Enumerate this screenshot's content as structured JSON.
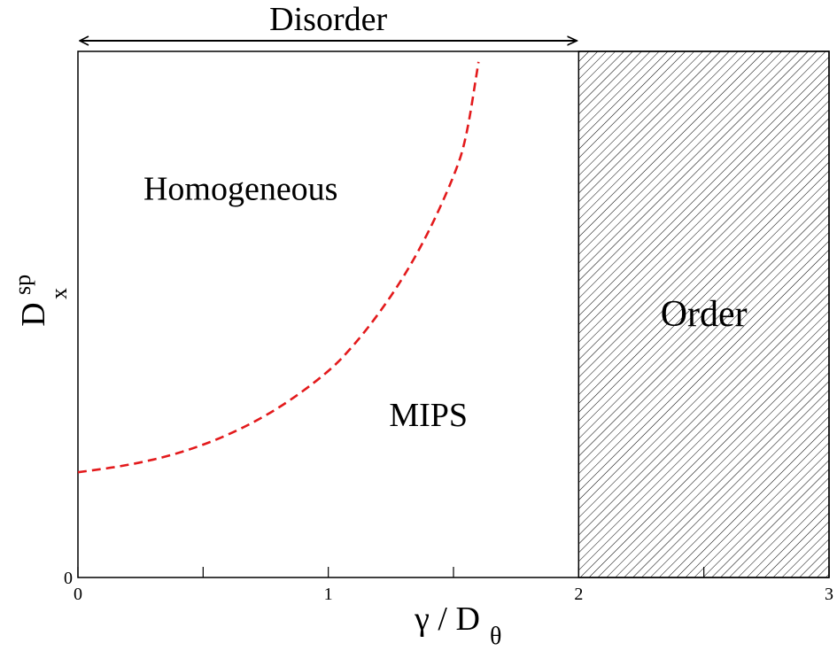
{
  "chart_data": {
    "type": "line",
    "title": "",
    "xlabel": "γ / D",
    "xlabel_sub": "θ",
    "ylabel": "D",
    "ylabel_sub": "x",
    "ylabel_sup": "sp",
    "xlim": [
      0,
      3
    ],
    "ylim": [
      0,
      1
    ],
    "x_ticks": [
      0,
      0.5,
      1,
      1.5,
      2,
      2.5,
      3
    ],
    "x_tick_labels": [
      {
        "value": 0,
        "label": "0"
      },
      {
        "value": 1,
        "label": "1"
      },
      {
        "value": 2,
        "label": "2"
      },
      {
        "value": 3,
        "label": "3"
      }
    ],
    "y_tick_labels": [
      {
        "value": 0,
        "label": "0"
      }
    ],
    "grid": false,
    "series": [
      {
        "style": "dashed",
        "color": "#e31a1c",
        "x": [
          0,
          0.2,
          0.4,
          0.6,
          0.8,
          1.0,
          1.1,
          1.2,
          1.3,
          1.4,
          1.5,
          1.55,
          1.6
        ],
        "y": [
          0.2,
          0.213,
          0.235,
          0.27,
          0.32,
          0.39,
          0.44,
          0.5,
          0.57,
          0.655,
          0.76,
          0.83,
          0.98
        ]
      }
    ],
    "shaded_regions": [
      {
        "x_from": 2,
        "x_to": 3,
        "pattern": "diagonal-hatch"
      }
    ],
    "annotations": [
      {
        "text": "Disorder",
        "kind": "double-arrow",
        "x_from": 0,
        "x_to": 2
      },
      {
        "text": "Homogeneous",
        "x": 0.65,
        "y": 0.74
      },
      {
        "text": "MIPS",
        "x": 1.4,
        "y": 0.31
      },
      {
        "text": "Order",
        "x": 2.5,
        "y": 0.5
      }
    ]
  }
}
